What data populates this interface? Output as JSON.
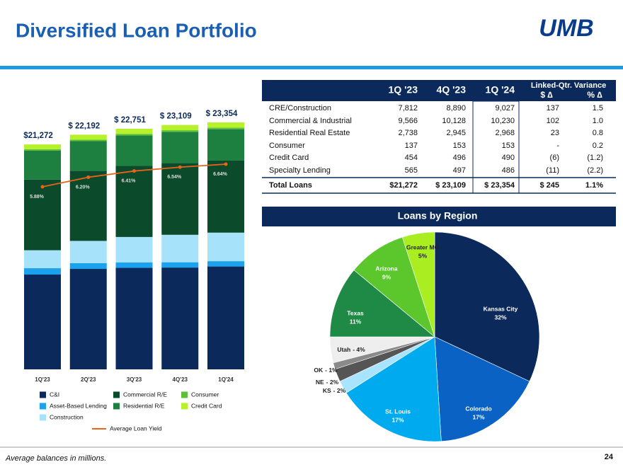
{
  "header": {
    "title": "Diversified Loan Portfolio",
    "logo": "UMB"
  },
  "chart_data": [
    {
      "type": "bar",
      "stacked": true,
      "categories": [
        "1Q'23",
        "2Q'23",
        "3Q'23",
        "4Q'23",
        "1Q'24"
      ],
      "series": [
        {
          "name": "C&I",
          "color": "#0b2a5b",
          "values": [
            8966,
            9500,
            9600,
            9628,
            9730
          ]
        },
        {
          "name": "Asset-Based Lending",
          "color": "#1aa3ec",
          "values": [
            600,
            550,
            520,
            500,
            500
          ]
        },
        {
          "name": "Construction",
          "color": "#a6e3fb",
          "values": [
            1700,
            2100,
            2400,
            2600,
            2700
          ]
        },
        {
          "name": "Commercial R/E",
          "color": "#0b4a2a",
          "values": [
            6677,
            6632,
            6721,
            6787,
            6813
          ]
        },
        {
          "name": "Residential R/E",
          "color": "#1e8040",
          "values": [
            2738,
            2800,
            2880,
            2945,
            2968
          ]
        },
        {
          "name": "Consumer",
          "color": "#5cc03a",
          "values": [
            137,
            140,
            150,
            153,
            153
          ]
        },
        {
          "name": "Credit Card",
          "color": "#b6f22a",
          "values": [
            454,
            470,
            480,
            496,
            490
          ]
        },
        {
          "name": "Average Loan Yield",
          "type": "line",
          "axis": "y2",
          "color": "#e8641b",
          "values": [
            5.88,
            6.2,
            6.41,
            6.54,
            6.64
          ],
          "value_labels": [
            "5.88%",
            "6.20%",
            "6.41%",
            "6.54%",
            "6.64%"
          ]
        }
      ],
      "totals": [
        21272,
        22192,
        22751,
        23109,
        23354
      ],
      "total_labels": [
        "$21,272",
        "$ 22,192",
        "$ 22,751",
        "$ 23,109",
        "$ 23,354"
      ]
    },
    {
      "type": "pie",
      "title": "Loans by Region",
      "categories": [
        "Kansas City",
        "Colorado",
        "St. Louis",
        "KS",
        "NE",
        "OK",
        "Utah",
        "Texas",
        "Arizona",
        "Greater MO"
      ],
      "values": [
        32,
        17,
        17,
        2,
        2,
        1,
        4,
        11,
        9,
        5
      ],
      "value_labels": [
        "32%",
        "17%",
        "17%",
        "- 2%",
        "- 2%",
        "- 1%",
        "- 4%",
        "11%",
        "9%",
        "5%"
      ],
      "colors": [
        "#0b2a5b",
        "#0a62c4",
        "#00aaee",
        "#a8e4ff",
        "#555555",
        "#8a8a8a",
        "#eeeeee",
        "#1e8a45",
        "#5cc72c",
        "#aaee22"
      ]
    }
  ],
  "table": {
    "columns": [
      "1Q '23",
      "4Q '23",
      "1Q '24"
    ],
    "variance_title": "Linked-Qtr. Variance",
    "variance_columns": [
      "$ ∆",
      "% ∆"
    ],
    "rows": [
      [
        "CRE/Construction",
        "7,812",
        "8,890",
        "9,027",
        "137",
        "1.5"
      ],
      [
        "Commercial & Industrial",
        "9,566",
        "10,128",
        "10,230",
        "102",
        "1.0"
      ],
      [
        "Residential Real Estate",
        "2,738",
        "2,945",
        "2,968",
        "23",
        "0.8"
      ],
      [
        "Consumer",
        "137",
        "153",
        "153",
        "-",
        "0.2"
      ],
      [
        "Credit Card",
        "454",
        "496",
        "490",
        "(6)",
        "(1.2)"
      ],
      [
        "Specialty Lending",
        "565",
        "497",
        "486",
        "(11)",
        "(2.2)"
      ],
      [
        "Total Loans",
        "$21,272",
        "$ 23,109",
        "$ 23,354",
        "$ 245",
        "1.1%"
      ]
    ]
  },
  "footer": {
    "note": "Average balances in millions.",
    "page": "24"
  }
}
